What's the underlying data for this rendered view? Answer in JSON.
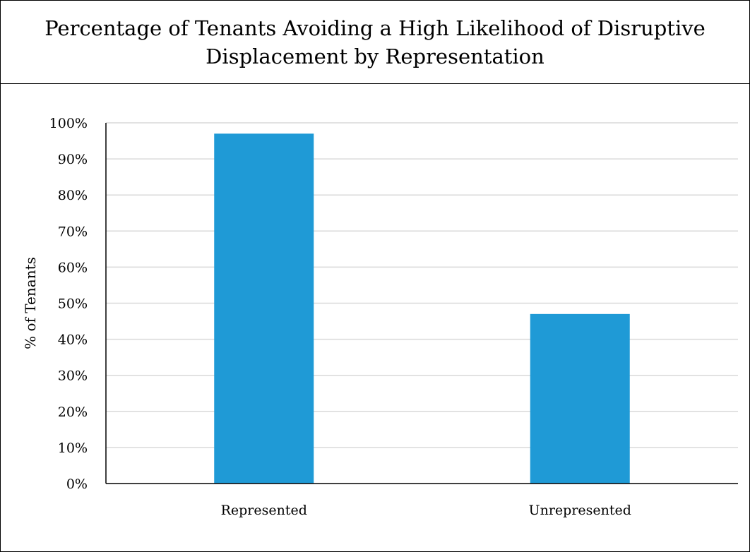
{
  "chart_data": {
    "type": "bar",
    "title": "Percentage of Tenants Avoiding a High Likelihood of Disruptive Displacement by Representation",
    "xlabel": "",
    "ylabel": "% of Tenants",
    "categories": [
      "Represented",
      "Unrepresented"
    ],
    "values": [
      97,
      47
    ],
    "ylim": [
      0,
      100
    ],
    "yticks": [
      "0%",
      "10%",
      "20%",
      "30%",
      "40%",
      "50%",
      "60%",
      "70%",
      "80%",
      "90%",
      "100%"
    ],
    "grid": true,
    "legend": "none",
    "bar_color": "#1f9ad6",
    "grid_color": "#d9d9d9"
  }
}
